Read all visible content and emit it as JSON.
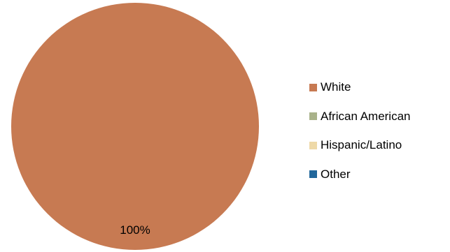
{
  "chart_data": {
    "type": "pie",
    "categories": [
      "White",
      "African American",
      "Hispanic/Latino",
      "Other"
    ],
    "values": [
      100,
      0,
      0,
      0
    ],
    "data_labels": [
      "100%"
    ],
    "colors": [
      "#C77A52",
      "#A9B28A",
      "#EED9A8",
      "#21679B"
    ],
    "title": "",
    "legend_position": "right"
  }
}
